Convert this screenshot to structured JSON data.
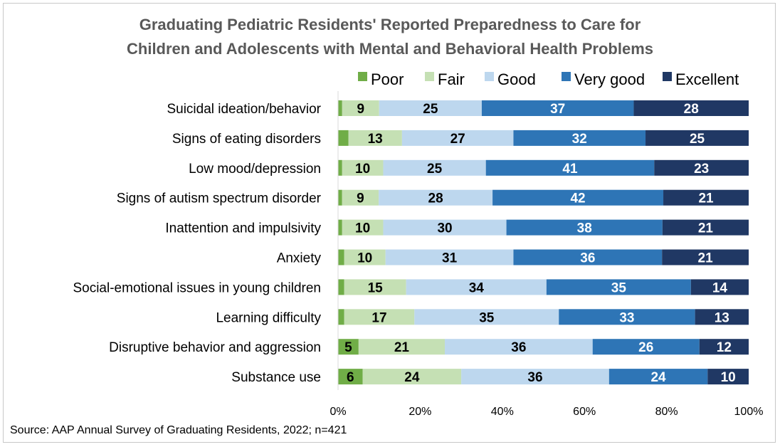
{
  "chart_data": {
    "type": "bar",
    "orientation": "horizontal",
    "stacked": true,
    "normalized": true,
    "title_lines": [
      "Graduating Pediatric Residents' Reported Preparedness to Care for",
      "Children and Adolescents with Mental and Behavioral Health Problems"
    ],
    "categories": [
      "Suicidal ideation/behavior",
      "Signs of eating disorders",
      "Low mood/depression",
      "Signs of autism spectrum disorder",
      "Inattention and impulsivity",
      "Anxiety",
      "Social-emotional issues in young children",
      "Learning difficulty",
      "Disruptive behavior and aggression",
      "Substance use"
    ],
    "series": [
      {
        "name": "Poor",
        "color": "#70ad47",
        "label_color": "#000000",
        "values": [
          1,
          2.5,
          1,
          1,
          1,
          1.5,
          1.5,
          1.5,
          5,
          6
        ],
        "labels": [
          "",
          "",
          "",
          "",
          "",
          "",
          "",
          "",
          "5",
          "6"
        ]
      },
      {
        "name": "Fair",
        "color": "#c5e0b4",
        "label_color": "#000000",
        "values": [
          9,
          13,
          10,
          9,
          10,
          10,
          15,
          17,
          21,
          24
        ],
        "labels": [
          "9",
          "13",
          "10",
          "9",
          "10",
          "10",
          "15",
          "17",
          "21",
          "24"
        ]
      },
      {
        "name": "Good",
        "color": "#bdd7ee",
        "label_color": "#000000",
        "values": [
          25,
          27,
          25,
          28,
          30,
          31,
          34,
          35,
          36,
          36
        ],
        "labels": [
          "25",
          "27",
          "25",
          "28",
          "30",
          "31",
          "34",
          "35",
          "36",
          "36"
        ]
      },
      {
        "name": "Very good",
        "color": "#2e75b6",
        "label_color": "#ffffff",
        "values": [
          37,
          32,
          41,
          42,
          38,
          36,
          35,
          33,
          26,
          24
        ],
        "labels": [
          "37",
          "32",
          "41",
          "42",
          "38",
          "36",
          "35",
          "33",
          "26",
          "24"
        ]
      },
      {
        "name": "Excellent",
        "color": "#203864",
        "label_color": "#ffffff",
        "values": [
          28,
          25,
          23,
          21,
          21,
          21,
          14,
          13,
          12,
          10
        ],
        "labels": [
          "28",
          "25",
          "23",
          "21",
          "21",
          "21",
          "14",
          "13",
          "12",
          "10"
        ]
      }
    ],
    "xlim": [
      0,
      100
    ],
    "x_ticks": [
      "0%",
      "20%",
      "40%",
      "60%",
      "80%",
      "100%"
    ],
    "legend_position": "top-right",
    "grid": false
  },
  "footer": {
    "source": "Source: AAP Annual Survey of Graduating Residents, 2022; n=421"
  }
}
